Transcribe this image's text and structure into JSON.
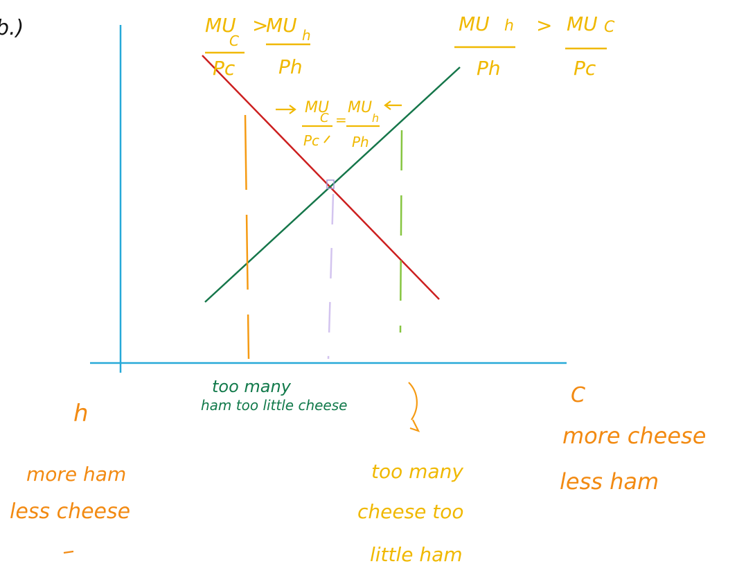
{
  "colors": {
    "axis": "#27a9d8",
    "red_line": "#cc1f1f",
    "green_line": "#15764a",
    "orange_dash": "#f59a12",
    "lightgreen_dash": "#86c540",
    "lavender_dash": "#d3c4ef",
    "yellow_text": "#f0b800",
    "orange_text": "#f28a12",
    "green_text": "#11794a"
  },
  "header": {
    "part_label": "b.)"
  },
  "left_condition": {
    "mu_c": "MU",
    "mu_c_sub": "C",
    "p_c": "Pc",
    "gt": ">",
    "mu_h": "MU",
    "mu_h_sub": "h",
    "p_h": "Ph"
  },
  "right_condition": {
    "mu_h": "MU",
    "mu_h_sub": "h",
    "p_h": "Ph",
    "gt": ">",
    "mu_c": "MU",
    "mu_c_sub": "C",
    "p_c": "Pc"
  },
  "equilibrium": {
    "mu_c": "MU",
    "mu_c_sub": "C",
    "p_c": "Pc",
    "eq": "=",
    "mu_h": "MU",
    "mu_h_sub": "h",
    "p_h": "Ph"
  },
  "axis_labels": {
    "left": "h",
    "right": "C"
  },
  "annotations": {
    "too_many_ham_1": "too many",
    "too_many_ham_2": "ham too little cheese",
    "more_ham_1": "more ham",
    "more_ham_2": "less cheese",
    "more_cheese_1": "more cheese",
    "more_cheese_2": "less ham",
    "too_many_cheese_1": "too many",
    "too_many_cheese_2": "cheese too",
    "too_many_cheese_3": "little ham"
  }
}
